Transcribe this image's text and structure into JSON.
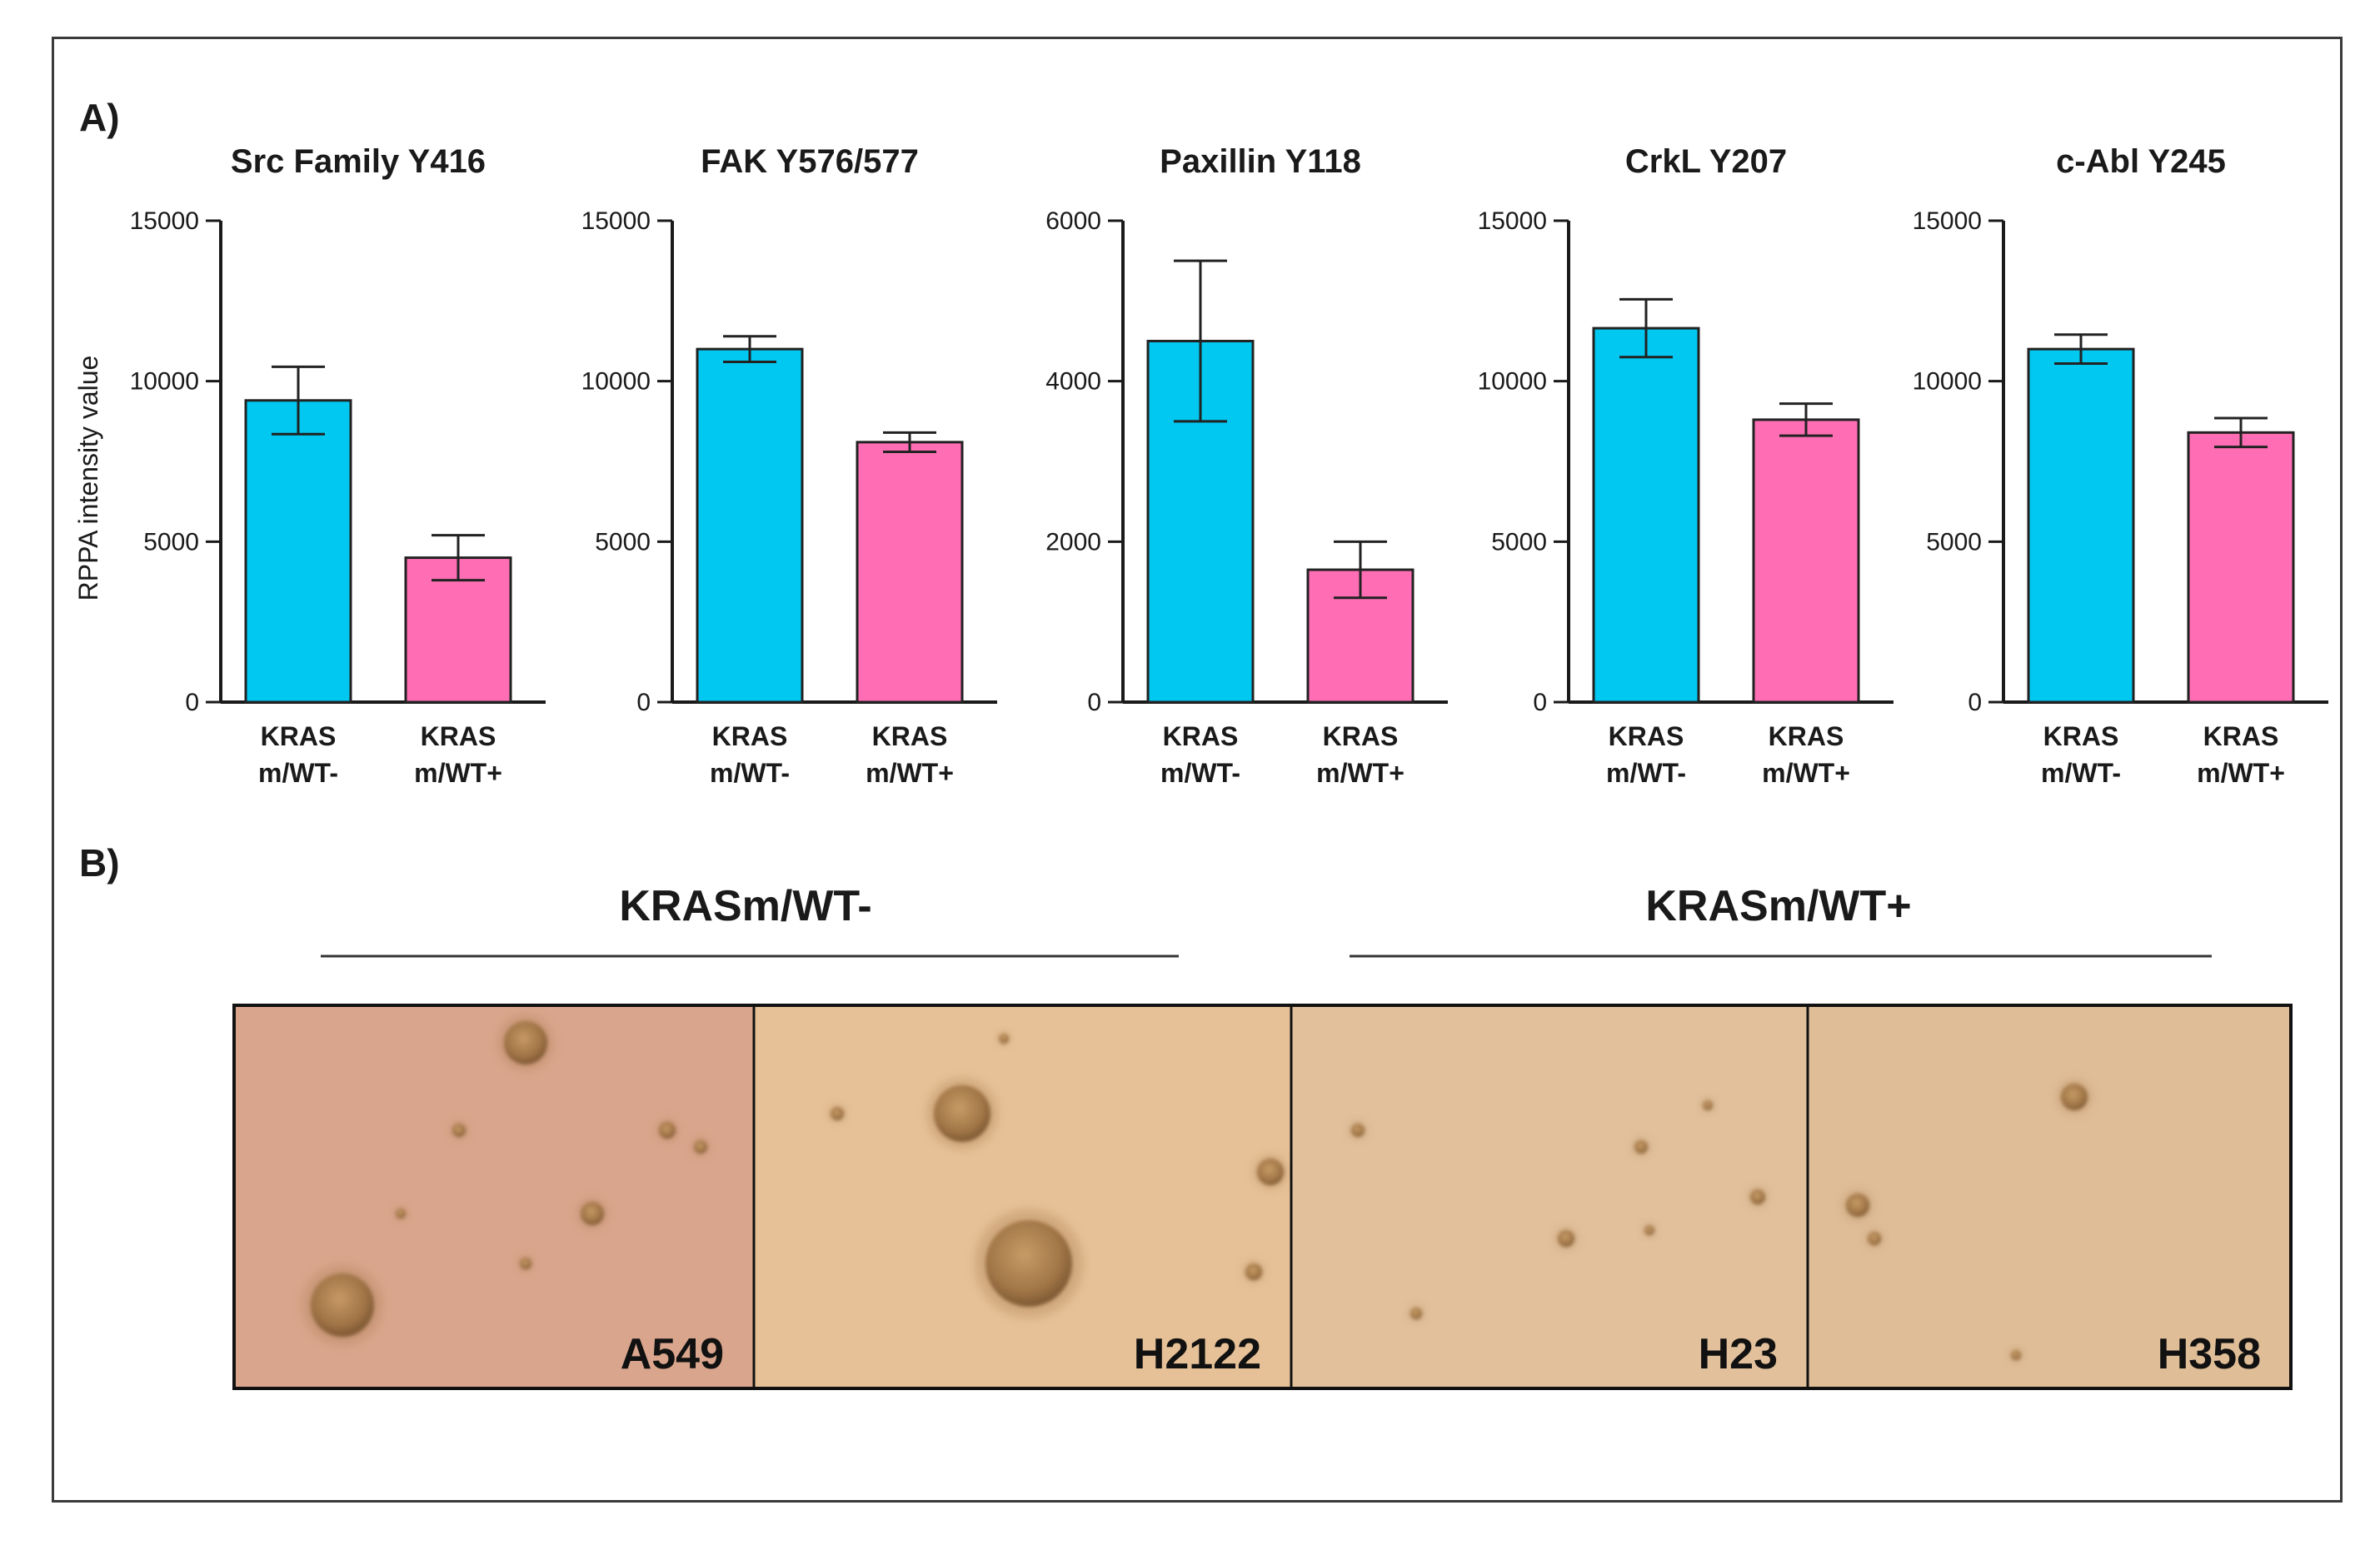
{
  "panel_a_label": "A)",
  "panel_b_label": "B)",
  "colors": {
    "kras_wt_minus": "#00c8f0",
    "kras_wt_plus": "#ff6eb4",
    "axis": "#1a1a1a"
  },
  "chart_data": [
    {
      "type": "bar",
      "title": "Src Family Y416",
      "ylabel": "RPPA intensity value",
      "categories": [
        [
          "KRAS",
          "m/WT-"
        ],
        [
          "KRAS",
          "m/WT+"
        ]
      ],
      "values": [
        9400,
        4500
      ],
      "errors": [
        1050,
        700
      ],
      "ylim": [
        0,
        15000
      ],
      "yticks": [
        "0",
        "5000",
        "10000",
        "15000"
      ]
    },
    {
      "type": "bar",
      "title": "FAK Y576/577",
      "ylabel": "",
      "categories": [
        [
          "KRAS",
          "m/WT-"
        ],
        [
          "KRAS",
          "m/WT+"
        ]
      ],
      "values": [
        11000,
        8100
      ],
      "errors": [
        400,
        300
      ],
      "ylim": [
        0,
        15000
      ],
      "yticks": [
        "0",
        "5000",
        "10000",
        "15000"
      ]
    },
    {
      "type": "bar",
      "title": "Paxillin Y118",
      "ylabel": "",
      "categories": [
        [
          "KRAS",
          "m/WT-"
        ],
        [
          "KRAS",
          "m/WT+"
        ]
      ],
      "values": [
        4500,
        1650
      ],
      "errors": [
        1000,
        350
      ],
      "ylim": [
        0,
        6000
      ],
      "yticks": [
        "0",
        "2000",
        "4000",
        "6000"
      ]
    },
    {
      "type": "bar",
      "title": "CrkL Y207",
      "ylabel": "",
      "categories": [
        [
          "KRAS",
          "m/WT-"
        ],
        [
          "KRAS",
          "m/WT+"
        ]
      ],
      "values": [
        11650,
        8800
      ],
      "errors": [
        900,
        500
      ],
      "ylim": [
        0,
        15000
      ],
      "yticks": [
        "0",
        "5000",
        "10000",
        "15000"
      ]
    },
    {
      "type": "bar",
      "title": "c-Abl Y245",
      "ylabel": "",
      "categories": [
        [
          "KRAS",
          "m/WT-"
        ],
        [
          "KRAS",
          "m/WT+"
        ]
      ],
      "values": [
        11000,
        8400
      ],
      "errors": [
        450,
        450
      ],
      "ylim": [
        0,
        15000
      ],
      "yticks": [
        "0",
        "5000",
        "10000",
        "15000"
      ]
    }
  ],
  "panel_b": {
    "groups": [
      "KRASm/WT-",
      "KRASm/WT+"
    ],
    "images": [
      {
        "label": "A549",
        "tone": "#d9a58c"
      },
      {
        "label": "H2122",
        "tone": "#e6c197"
      },
      {
        "label": "H23",
        "tone": "#e1c09b"
      },
      {
        "label": "H358",
        "tone": "#dfbd97"
      }
    ]
  }
}
